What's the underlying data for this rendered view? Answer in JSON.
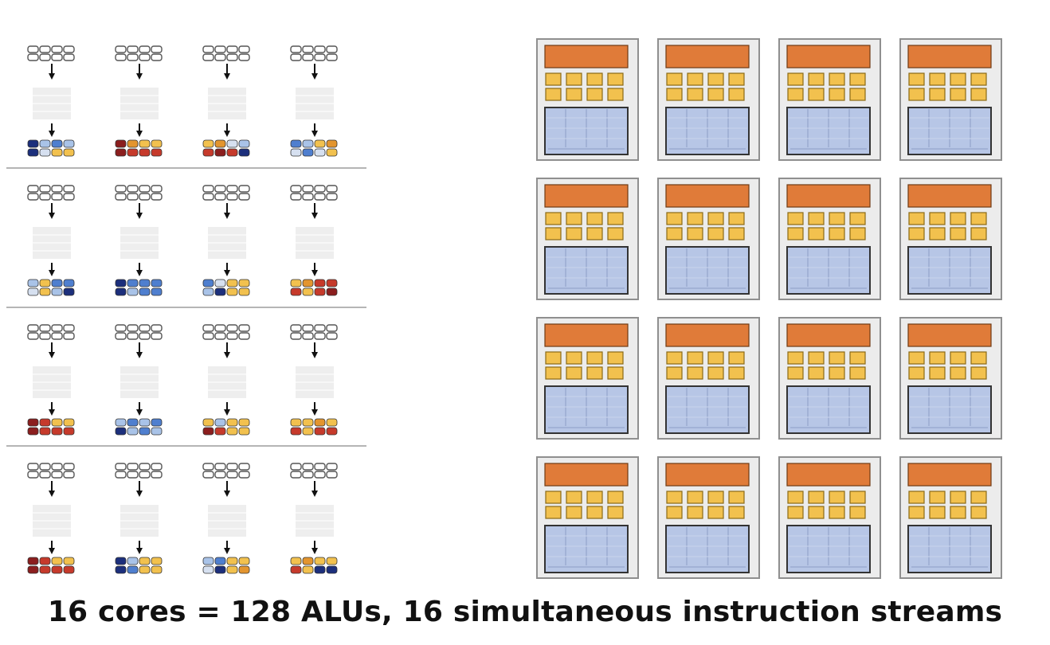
{
  "caption": "16 cores = 128 ALUs, 16 simultaneous instruction streams",
  "colors": {
    "core_border": "#8f8f8f",
    "core_fill": "#ececec",
    "fetch_decode": "#e07b39",
    "alu": "#f2c14e",
    "alu_border": "#8a6a16",
    "context": "#b7c6e6",
    "context_border": "#333333",
    "input_stroke": "#555555",
    "instr_block": "#eeeeee",
    "row_divider": "#b5b5b5",
    "out_light_blue": "#a9c3e8",
    "out_blue": "#4f7fcf",
    "out_navy": "#1c2f7c",
    "out_yellow": "#f2c14e",
    "out_orange": "#e3952f",
    "out_red": "#c63a2b",
    "out_dark_red": "#8b1e1e",
    "out_pale_blue": "#d6e0f0"
  },
  "icons": [
    "down-arrow-icon"
  ],
  "streams_grid": {
    "rows": 4,
    "cols": 4,
    "outputs": [
      [
        [
          "Nv",
          "Lb",
          "Bl",
          "Lb",
          "Nv",
          "Pl",
          "Ye",
          "Ye"
        ],
        [
          "Dr",
          "Or",
          "Ye",
          "Ye",
          "Dr",
          "Rd",
          "Rd",
          "Rd"
        ],
        [
          "Ye",
          "Or",
          "Pl",
          "Lb",
          "Rd",
          "Dr",
          "Rd",
          "Nv"
        ],
        [
          "Bl",
          "Lb",
          "Ye",
          "Or",
          "Pl",
          "Bl",
          "Pl",
          "Ye"
        ]
      ],
      [
        [
          "Lb",
          "Ye",
          "Bl",
          "Bl",
          "Pl",
          "Ye",
          "Lb",
          "Nv"
        ],
        [
          "Nv",
          "Bl",
          "Bl",
          "Bl",
          "Nv",
          "Lb",
          "Bl",
          "Bl"
        ],
        [
          "Bl",
          "Pl",
          "Ye",
          "Ye",
          "Lb",
          "Nv",
          "Ye",
          "Ye"
        ],
        [
          "Ye",
          "Or",
          "Rd",
          "Rd",
          "Rd",
          "Ye",
          "Rd",
          "Dr"
        ]
      ],
      [
        [
          "Dr",
          "Rd",
          "Ye",
          "Ye",
          "Dr",
          "Rd",
          "Rd",
          "Rd"
        ],
        [
          "Lb",
          "Bl",
          "Lb",
          "Bl",
          "Nv",
          "Lb",
          "Bl",
          "Lb"
        ],
        [
          "Ye",
          "Lb",
          "Ye",
          "Ye",
          "Dr",
          "Rd",
          "Ye",
          "Ye"
        ],
        [
          "Ye",
          "Ye",
          "Or",
          "Ye",
          "Rd",
          "Ye",
          "Rd",
          "Rd"
        ]
      ],
      [
        [
          "Dr",
          "Rd",
          "Ye",
          "Ye",
          "Dr",
          "Rd",
          "Rd",
          "Rd"
        ],
        [
          "Nv",
          "Lb",
          "Ye",
          "Ye",
          "Nv",
          "Bl",
          "Ye",
          "Ye"
        ],
        [
          "Lb",
          "Bl",
          "Ye",
          "Ye",
          "Pl",
          "Nv",
          "Ye",
          "Or"
        ],
        [
          "Ye",
          "Or",
          "Ye",
          "Ye",
          "Rd",
          "Ye",
          "Nv",
          "Nv"
        ]
      ]
    ]
  },
  "cores_grid": {
    "rows": 4,
    "cols": 4,
    "alus_per_core": 8
  }
}
